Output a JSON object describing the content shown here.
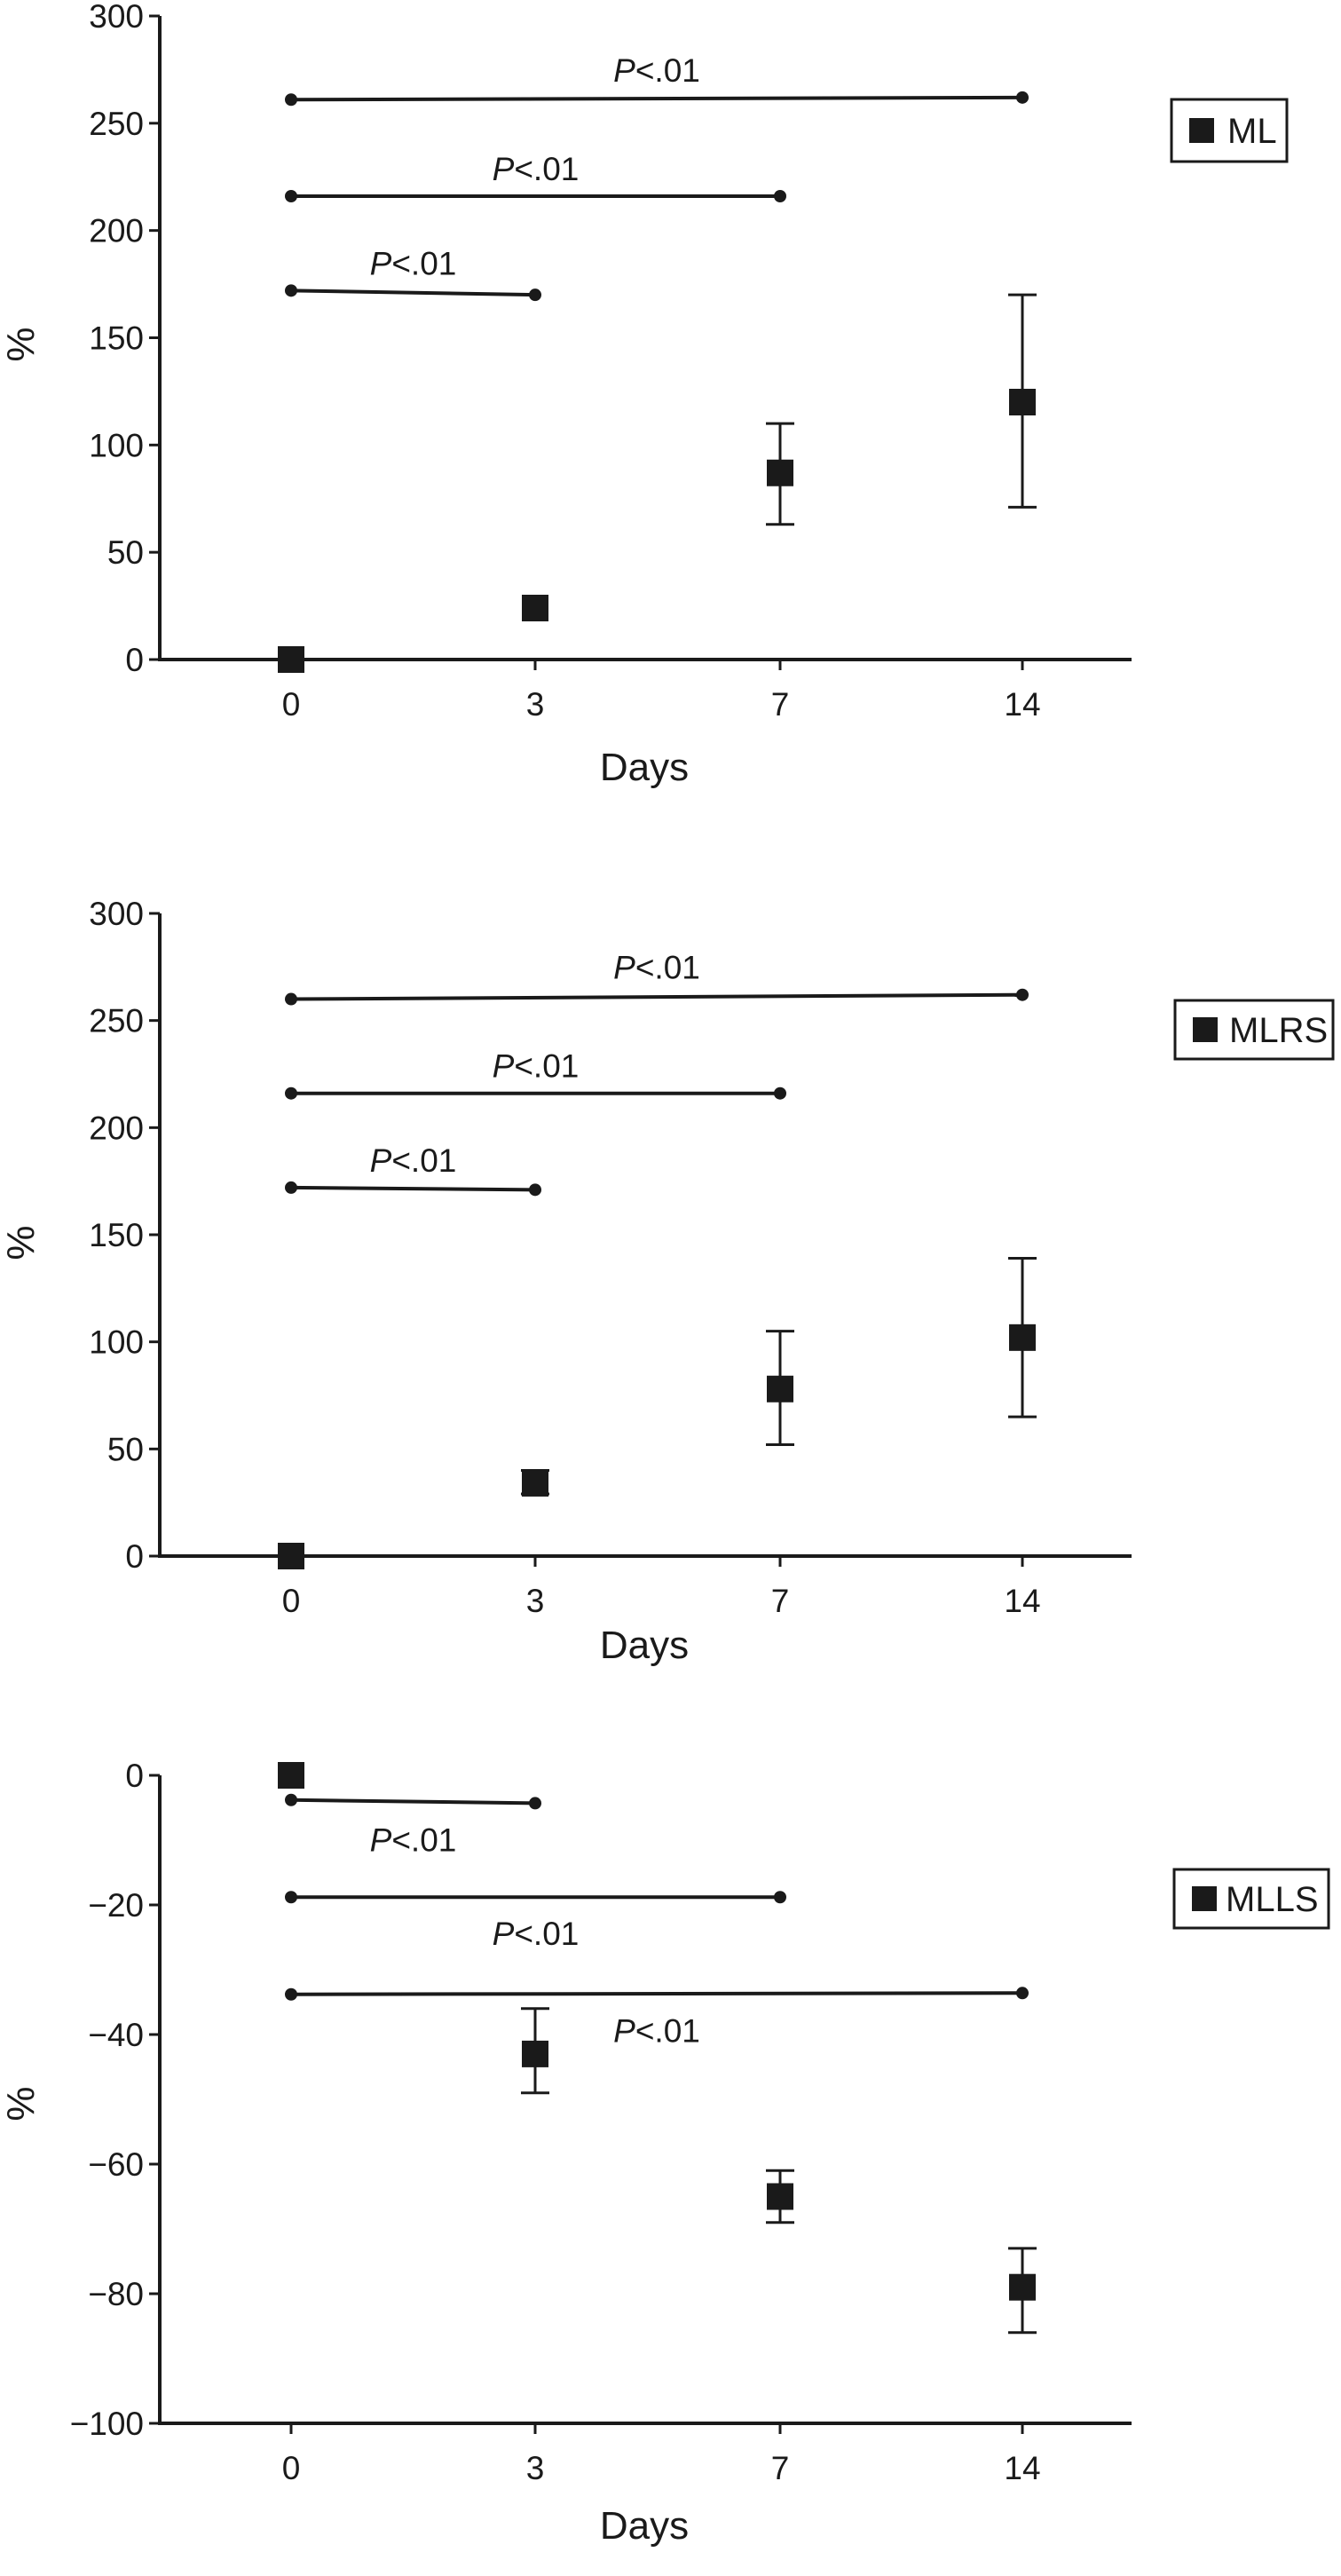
{
  "chart_data": [
    {
      "type": "scatter",
      "xlabel": "Days",
      "ylabel": "%",
      "categories": [
        "0",
        "3",
        "7",
        "14"
      ],
      "ylim": [
        0,
        300
      ],
      "yticks": [
        "0",
        "50",
        "100",
        "150",
        "200",
        "250",
        "300"
      ],
      "grid": false,
      "legend": {
        "position": "right",
        "entries": [
          "ML"
        ]
      },
      "series": [
        {
          "name": "ML",
          "values": [
            0,
            24,
            87,
            120
          ],
          "err_low": [
            0,
            24,
            63,
            71
          ],
          "err_high": [
            0,
            24,
            110,
            170
          ]
        }
      ],
      "significance": [
        {
          "label": "<.01",
          "from": "0",
          "to": "3",
          "y": [
            172,
            170
          ]
        },
        {
          "label": "<.01",
          "from": "0",
          "to": "7",
          "y": [
            216,
            216
          ]
        },
        {
          "label": "<.01",
          "from": "0",
          "to": "14",
          "y": [
            261,
            262
          ]
        }
      ]
    },
    {
      "type": "scatter",
      "xlabel": "Days",
      "ylabel": "%",
      "categories": [
        "0",
        "3",
        "7",
        "14"
      ],
      "ylim": [
        0,
        300
      ],
      "yticks": [
        "0",
        "50",
        "100",
        "150",
        "200",
        "250",
        "300"
      ],
      "grid": false,
      "legend": {
        "position": "right",
        "entries": [
          "MLRS"
        ]
      },
      "series": [
        {
          "name": "MLRS",
          "values": [
            0,
            34,
            78,
            102
          ],
          "err_low": [
            0,
            29,
            52,
            65
          ],
          "err_high": [
            0,
            40,
            105,
            139
          ]
        }
      ],
      "significance": [
        {
          "label": "<.01",
          "from": "0",
          "to": "3",
          "y": [
            172,
            171
          ]
        },
        {
          "label": "<.01",
          "from": "0",
          "to": "7",
          "y": [
            216,
            216
          ]
        },
        {
          "label": "<.01",
          "from": "0",
          "to": "14",
          "y": [
            260,
            262
          ]
        }
      ]
    },
    {
      "type": "scatter",
      "xlabel": "Days",
      "ylabel": "%",
      "categories": [
        "0",
        "3",
        "7",
        "14"
      ],
      "ylim": [
        -100,
        0
      ],
      "yticks": [
        "0",
        "−20",
        "−40",
        "−60",
        "−80",
        "−100"
      ],
      "grid": false,
      "legend": {
        "position": "right",
        "entries": [
          "MLLS"
        ]
      },
      "series": [
        {
          "name": "MLLS",
          "values": [
            0,
            -43,
            -65,
            -79
          ],
          "err_low": [
            0,
            -49,
            -69,
            -86
          ],
          "err_high": [
            0,
            -36,
            -61,
            -73
          ]
        }
      ],
      "significance": [
        {
          "label": "<.01",
          "from": "0",
          "to": "3",
          "y": [
            -3.8,
            -4.3
          ]
        },
        {
          "label": "<.01",
          "from": "0",
          "to": "7",
          "y": [
            -18.8,
            -18.8
          ]
        },
        {
          "label": "<.01",
          "from": "0",
          "to": "14",
          "y": [
            -33.8,
            -33.6
          ]
        }
      ]
    }
  ],
  "significance_prefix": "P"
}
